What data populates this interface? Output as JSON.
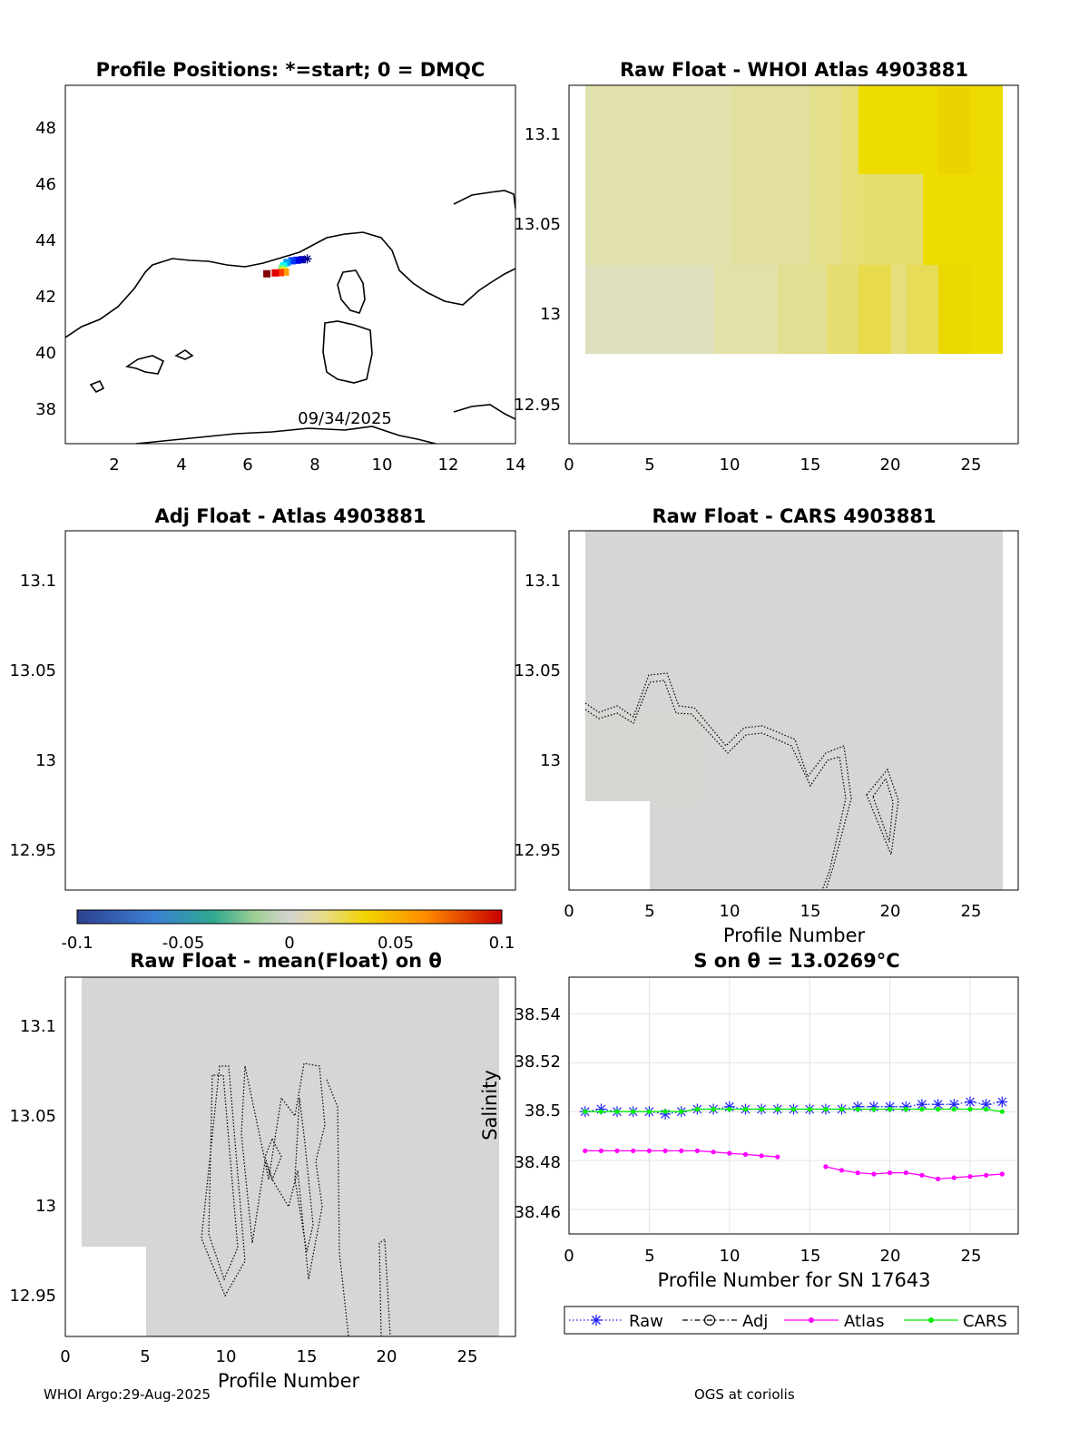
{
  "footer": {
    "left": "WHOI Argo:29-Aug-2025",
    "right": "OGS at coriolis"
  },
  "chart_data": [
    {
      "id": "positions",
      "type": "scatter",
      "title": "Profile Positions: *=start; 0 = DMQC",
      "xlim": [
        0.6,
        14
      ],
      "ylim": [
        36.8,
        49.5
      ],
      "x_ticks": [
        "2",
        "4",
        "6",
        "8",
        "10",
        "12",
        "14"
      ],
      "y_ticks": [
        "38",
        "40",
        "42",
        "44",
        "46",
        "48"
      ],
      "annotation": "09/34/2025",
      "points": [
        {
          "lon": 7.8,
          "lat": 43.35,
          "c": 0.0
        },
        {
          "lon": 7.65,
          "lat": 43.32,
          "c": 0.05
        },
        {
          "lon": 7.5,
          "lat": 43.3,
          "c": 0.1
        },
        {
          "lon": 7.35,
          "lat": 43.28,
          "c": 0.18
        },
        {
          "lon": 7.2,
          "lat": 43.22,
          "c": 0.28
        },
        {
          "lon": 7.1,
          "lat": 43.1,
          "c": 0.38
        },
        {
          "lon": 7.05,
          "lat": 43.0,
          "c": 0.5
        },
        {
          "lon": 7.1,
          "lat": 42.92,
          "c": 0.62
        },
        {
          "lon": 7.15,
          "lat": 42.88,
          "c": 0.72
        },
        {
          "lon": 7.0,
          "lat": 42.86,
          "c": 0.82
        },
        {
          "lon": 6.85,
          "lat": 42.85,
          "c": 0.9
        },
        {
          "lon": 6.6,
          "lat": 42.82,
          "c": 1.0
        }
      ]
    },
    {
      "id": "whoi",
      "type": "heatmap",
      "title": "Raw Float - WHOI Atlas  4903881",
      "xlim": [
        0,
        28
      ],
      "ylim": [
        12.926,
        13.125
      ],
      "x_ticks": [
        "0",
        "5",
        "10",
        "15",
        "20",
        "25"
      ],
      "y_ticks": [
        "13.1",
        "13.05",
        "13",
        "12.95"
      ]
    },
    {
      "id": "adj",
      "type": "heatmap",
      "title": "Adj Float - Atlas  4903881",
      "y_ticks": [
        "13.1",
        "13.05",
        "13",
        "12.95"
      ]
    },
    {
      "id": "cars",
      "type": "heatmap",
      "title": "Raw Float - CARS  4903881",
      "xlabel": "Profile Number",
      "x_ticks": [
        "0",
        "5",
        "10",
        "15",
        "20",
        "25"
      ],
      "y_ticks": [
        "13.1",
        "13.05",
        "13",
        "12.95"
      ]
    },
    {
      "id": "colorbar",
      "type": "heatmap",
      "range": [
        -0.1,
        0.1
      ],
      "ticks": [
        "-0.1",
        "-0.05",
        "0",
        "0.05",
        "0.1"
      ]
    },
    {
      "id": "mean",
      "type": "heatmap",
      "title": "Raw Float - mean(Float) on θ",
      "xlabel": "Profile Number",
      "x_ticks": [
        "0",
        "5",
        "10",
        "15",
        "20",
        "25"
      ],
      "y_ticks": [
        "13.1",
        "13.05",
        "13",
        "12.95"
      ]
    },
    {
      "id": "salinity",
      "type": "line",
      "title": "S on θ = 13.0269°C",
      "xlabel": "Profile Number for SN 17643",
      "ylabel": "Salinity",
      "xlim": [
        0,
        28
      ],
      "ylim": [
        38.45,
        38.555
      ],
      "grid": true,
      "legend": "bottom",
      "x_ticks": [
        "0",
        "5",
        "10",
        "15",
        "20",
        "25"
      ],
      "y_ticks": [
        "38.54",
        "38.52",
        "38.5",
        "38.48",
        "38.46"
      ],
      "series": [
        {
          "name": "Raw",
          "color": "#2020ff",
          "x": [
            1,
            2,
            3,
            4,
            5,
            6,
            7,
            8,
            9,
            10,
            11,
            12,
            13,
            14,
            15,
            16,
            17,
            18,
            19,
            20,
            21,
            22,
            23,
            24,
            25,
            26,
            27
          ],
          "y": [
            38.5,
            38.501,
            38.5,
            38.5,
            38.5,
            38.499,
            38.5,
            38.501,
            38.501,
            38.502,
            38.501,
            38.501,
            38.501,
            38.501,
            38.501,
            38.501,
            38.501,
            38.502,
            38.502,
            38.502,
            38.502,
            38.503,
            38.503,
            38.503,
            38.504,
            38.503,
            38.504
          ]
        },
        {
          "name": "Adj",
          "color": "#000000",
          "x": [],
          "y": []
        },
        {
          "name": "Atlas",
          "color": "#ff00ff",
          "x": [
            1,
            2,
            3,
            4,
            5,
            6,
            7,
            8,
            9,
            10,
            11,
            12,
            13,
            null,
            null,
            16,
            17,
            18,
            19,
            20,
            21,
            22,
            23,
            24,
            25,
            26,
            27
          ],
          "y": [
            38.484,
            38.484,
            38.484,
            38.484,
            38.484,
            38.484,
            38.484,
            38.484,
            38.4835,
            38.483,
            38.4825,
            38.482,
            38.4815,
            null,
            null,
            38.4775,
            38.476,
            38.475,
            38.4745,
            38.475,
            38.475,
            38.474,
            38.4725,
            38.473,
            38.4735,
            38.474,
            38.4745
          ]
        },
        {
          "name": "CARS",
          "color": "#00ee00",
          "x": [
            1,
            2,
            3,
            4,
            5,
            6,
            7,
            8,
            9,
            10,
            11,
            12,
            13,
            14,
            15,
            16,
            17,
            18,
            19,
            20,
            21,
            22,
            23,
            24,
            25,
            26,
            27
          ],
          "y": [
            38.5,
            38.5,
            38.5,
            38.5,
            38.5,
            38.5,
            38.5,
            38.501,
            38.501,
            38.501,
            38.501,
            38.501,
            38.501,
            38.501,
            38.501,
            38.501,
            38.501,
            38.501,
            38.501,
            38.501,
            38.501,
            38.501,
            38.501,
            38.501,
            38.501,
            38.501,
            38.5
          ]
        }
      ]
    }
  ]
}
